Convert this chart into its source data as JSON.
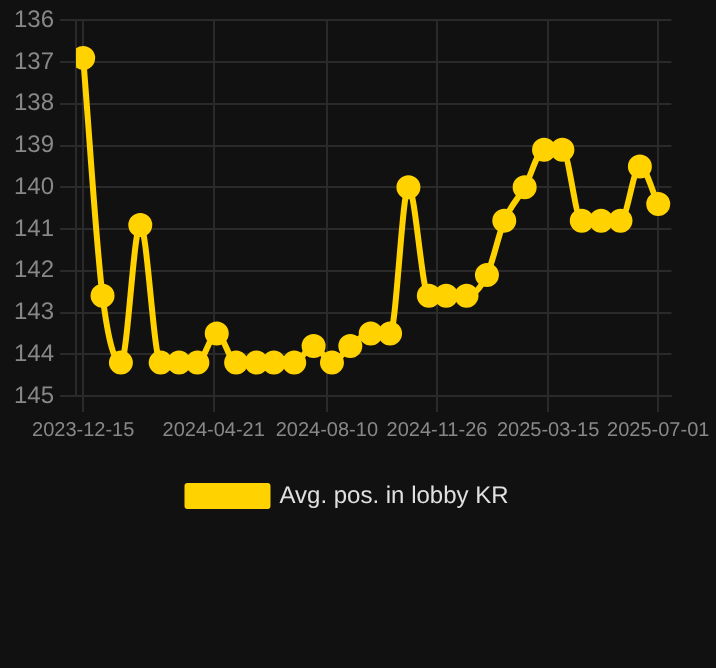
{
  "chart_data": {
    "type": "line",
    "x": [
      "2023-12-15",
      "2024-01-03",
      "2024-01-21",
      "2024-02-09",
      "2024-02-29",
      "2024-03-18",
      "2024-04-05",
      "2024-04-24",
      "2024-05-13",
      "2024-06-02",
      "2024-06-19",
      "2024-07-09",
      "2024-07-28",
      "2024-08-15",
      "2024-09-02",
      "2024-09-22",
      "2024-10-11",
      "2024-10-29",
      "2024-11-18",
      "2024-12-05",
      "2024-12-25",
      "2025-01-14",
      "2025-01-31",
      "2025-02-20",
      "2025-03-11",
      "2025-03-29",
      "2025-04-17",
      "2025-05-06",
      "2025-05-25",
      "2025-06-13",
      "2025-07-01"
    ],
    "series": [
      {
        "name": "Avg. pos. in lobby KR",
        "color": "#ffd200",
        "values": [
          136.9,
          142.6,
          144.2,
          140.9,
          144.2,
          144.2,
          144.2,
          143.5,
          144.2,
          144.2,
          144.2,
          144.2,
          143.8,
          144.2,
          143.8,
          143.5,
          143.5,
          140.0,
          142.6,
          142.6,
          142.6,
          142.1,
          140.8,
          140.0,
          139.1,
          139.1,
          140.8,
          140.8,
          140.8,
          139.5,
          140.4
        ]
      }
    ],
    "ylim": [
      145,
      136
    ],
    "yticks": [
      136,
      137,
      138,
      139,
      140,
      141,
      142,
      143,
      144,
      145
    ],
    "xlim": [
      "2023-12-08",
      "2025-07-14"
    ],
    "xticks": [
      "2023-12-15",
      "2024-04-21",
      "2024-08-10",
      "2024-11-26",
      "2025-03-15",
      "2025-07-01"
    ],
    "grid": true,
    "legend": "bottom",
    "marker": "circle",
    "line_style": "solid"
  }
}
